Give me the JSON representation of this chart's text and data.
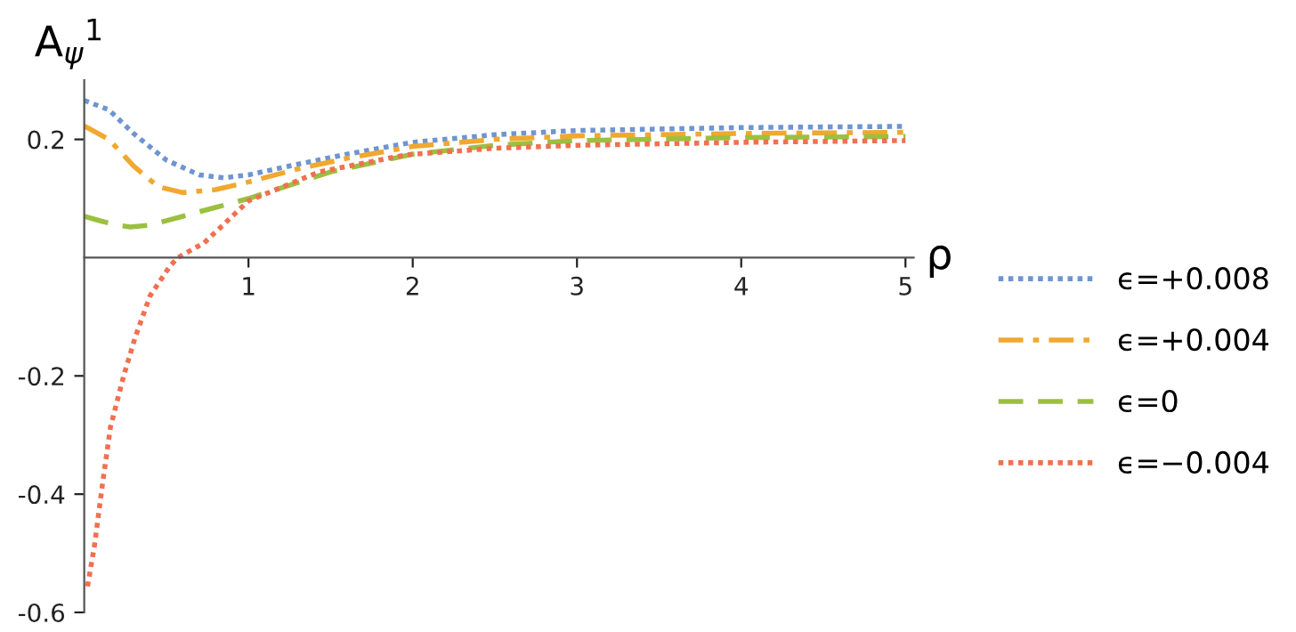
{
  "chart_data": {
    "type": "line",
    "xlabel": "ρ",
    "ylabel": "A$_{ψ}$$^{1}$",
    "xlim": [
      0,
      5.05
    ],
    "ylim": [
      -0.6,
      0.3
    ],
    "xticks": [
      1,
      2,
      3,
      4,
      5
    ],
    "yticks": [
      -0.6,
      -0.4,
      -0.2,
      0.2
    ],
    "legend": "right",
    "grid": false,
    "series": [
      {
        "name": "ϵ=+0.008",
        "color": "#6f95d0",
        "line_style": "dotted",
        "x": [
          0,
          0.15,
          0.3,
          0.5,
          0.7,
          0.85,
          1.0,
          1.3,
          1.6,
          2.0,
          2.5,
          3.0,
          4.0,
          5.0
        ],
        "values": [
          0.266,
          0.25,
          0.21,
          0.165,
          0.14,
          0.135,
          0.14,
          0.158,
          0.175,
          0.195,
          0.208,
          0.215,
          0.22,
          0.222
        ]
      },
      {
        "name": "ϵ=+0.004",
        "color": "#f0a830",
        "line_style": "dashdot",
        "x": [
          0,
          0.15,
          0.3,
          0.45,
          0.6,
          0.8,
          1.0,
          1.3,
          1.6,
          2.0,
          2.5,
          3.0,
          4.0,
          5.0
        ],
        "values": [
          0.223,
          0.2,
          0.155,
          0.12,
          0.11,
          0.115,
          0.128,
          0.15,
          0.168,
          0.188,
          0.2,
          0.206,
          0.21,
          0.212
        ]
      },
      {
        "name": "ϵ=0",
        "color": "#9bc040",
        "line_style": "dashed",
        "x": [
          0,
          0.1,
          0.2,
          0.28,
          0.4,
          0.6,
          0.8,
          1.0,
          1.5,
          2.0,
          2.5,
          3.0,
          4.0,
          5.0
        ],
        "values": [
          0.07,
          0.062,
          0.055,
          0.052,
          0.055,
          0.07,
          0.085,
          0.1,
          0.145,
          0.175,
          0.19,
          0.198,
          0.203,
          0.205
        ]
      },
      {
        "name": "ϵ=−0.004",
        "color": "#f07050",
        "line_style": "dotted",
        "x": [
          0.02,
          0.063,
          0.11,
          0.16,
          0.24,
          0.31,
          0.4,
          0.52,
          0.57,
          0.73,
          1.0,
          1.43,
          1.96,
          2.5,
          3.0,
          4.0,
          5.0
        ],
        "values": [
          -0.556,
          -0.486,
          -0.385,
          -0.286,
          -0.2,
          -0.135,
          -0.065,
          -0.015,
          0,
          0.025,
          0.096,
          0.145,
          0.174,
          0.185,
          0.19,
          0.195,
          0.198
        ]
      }
    ]
  }
}
